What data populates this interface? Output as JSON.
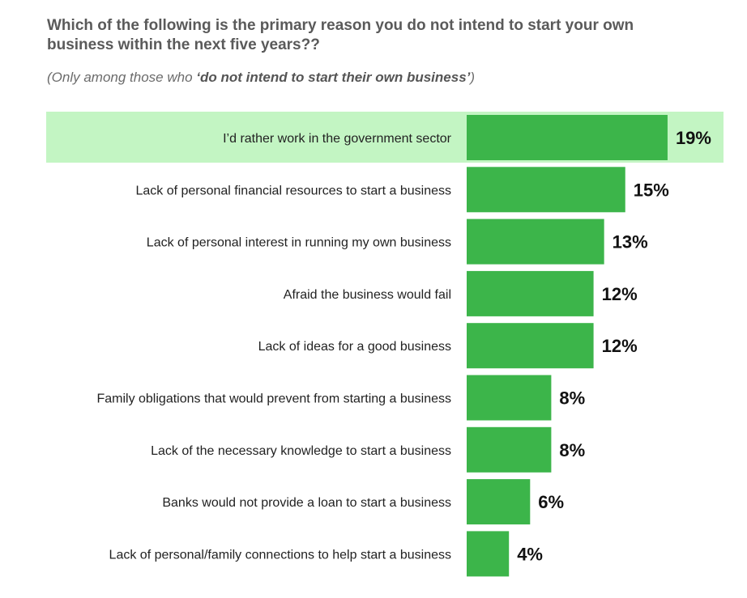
{
  "chart_data": {
    "type": "bar",
    "orientation": "horizontal",
    "title": "Which of the following is the primary reason you do not intend to start your own business within the next five years??",
    "subtitle_prefix": "(Only among those who ",
    "subtitle_emphasis": "‘do not intend to start their own business’",
    "subtitle_suffix": ")",
    "categories": [
      "I’d rather work in the government sector",
      "Lack of personal financial resources to start a business",
      "Lack of personal interest in running my own business",
      "Afraid the business would fail",
      "Lack of ideas for a good business",
      "Family obligations that would prevent from starting a business",
      "Lack of the necessary knowledge to start a business",
      "Banks would not provide a loan to start a business",
      "Lack of personal/family connections to help start a business"
    ],
    "values": [
      19,
      15,
      13,
      12,
      12,
      8,
      8,
      6,
      4
    ],
    "value_labels": [
      "19%",
      "15%",
      "13%",
      "12%",
      "12%",
      "8%",
      "8%",
      "6%",
      "4%"
    ],
    "highlighted_index": 0,
    "grid": false,
    "legend": "none"
  },
  "colors": {
    "bar": "#3cb54a",
    "highlight_row": "#c3f5c3"
  }
}
